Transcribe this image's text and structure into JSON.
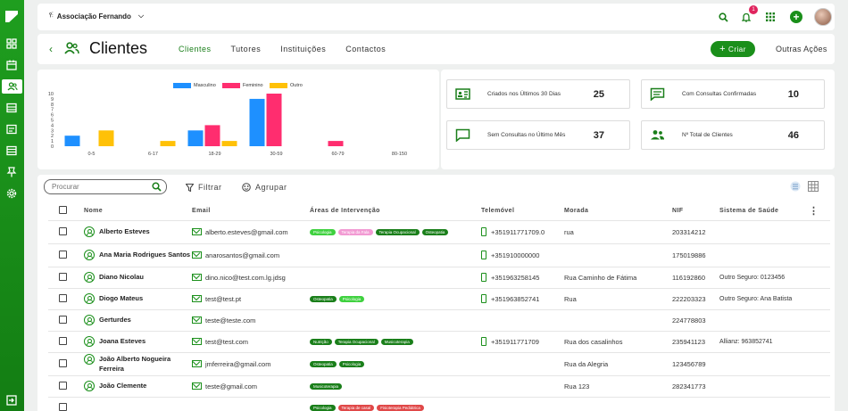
{
  "org": {
    "name": "Associação Fernando",
    "pin_icon": "pin-icon"
  },
  "notifications": {
    "count": "1"
  },
  "page": {
    "title": "Clientes",
    "tabs": [
      "Clientes",
      "Tutores",
      "Instituições",
      "Contactos"
    ],
    "active_tab": 0,
    "create_label": "Criar",
    "more_actions_label": "Outras Ações"
  },
  "colors": {
    "accent": "#1a8f1a",
    "masculino": "#1e90ff",
    "feminino": "#ff2d6f",
    "outro": "#ffc107"
  },
  "chart_data": {
    "type": "bar",
    "categories": [
      "0-5",
      "6-17",
      "18-29",
      "30-59",
      "60-79",
      "80-150"
    ],
    "series": [
      {
        "name": "Masculino",
        "values": [
          2,
          0,
          3,
          9,
          0,
          0
        ]
      },
      {
        "name": "Feminino",
        "values": [
          0,
          0,
          4,
          10,
          1,
          0
        ]
      },
      {
        "name": "Outro",
        "values": [
          3,
          1,
          1,
          0,
          0,
          0
        ]
      }
    ],
    "ylim": [
      0,
      10
    ],
    "yticks": [
      "0",
      "1",
      "2",
      "3",
      "4",
      "5",
      "6",
      "7",
      "8",
      "9",
      "10"
    ],
    "legend": "top",
    "grid": false
  },
  "stats": [
    {
      "label": "Criados nos Últimos 30 Dias",
      "value": "25",
      "icon": "id-card-icon"
    },
    {
      "label": "Com Consultas Confirmadas",
      "value": "10",
      "icon": "chat-icon"
    },
    {
      "label": "Sem Consultas no Último Mês",
      "value": "37",
      "icon": "chat-icon"
    },
    {
      "label": "Nº Total de Clientes",
      "value": "46",
      "icon": "users-icon"
    }
  ],
  "toolbar": {
    "search_placeholder": "Procurar",
    "filter_label": "Filtrar",
    "group_label": "Agrupar"
  },
  "table": {
    "columns": [
      "Nome",
      "Email",
      "Áreas de Intervenção",
      "Telemóvel",
      "Morada",
      "NIF",
      "Sistema de Saúde"
    ],
    "rows": [
      {
        "name": "Alberto Esteves",
        "email": "alberto.esteves@gmail.com",
        "areas": [
          [
            "Psicologia",
            "lime"
          ],
          [
            "Terapia da Fala",
            "pink"
          ],
          [
            "Terapia Ocupacional",
            "dark"
          ],
          [
            "Osteopatia",
            "dark"
          ]
        ],
        "phone": "+351911771709.0",
        "address": "rua",
        "nif": "203314212",
        "health": ""
      },
      {
        "name": "Ana Maria Rodrigues Santos",
        "email": "anarosantos@gmail.com",
        "areas": [],
        "phone": "+351910000000",
        "address": "",
        "nif": "175019886",
        "health": ""
      },
      {
        "name": "Diano Nicolau",
        "email": "dino.nico@test.com.lg.jdsg",
        "areas": [],
        "phone": "+351963258145",
        "address": "Rua Caminho de Fátima",
        "nif": "116192860",
        "health": "Outro Seguro: 0123456"
      },
      {
        "name": "Diogo Mateus",
        "email": "test@test.pt",
        "areas": [
          [
            "Osteopatia",
            "dark"
          ],
          [
            "Psicologia",
            "lime"
          ]
        ],
        "phone": "+351963852741",
        "address": "Rua",
        "nif": "222203323",
        "health": "Outro Seguro: Ana Batista"
      },
      {
        "name": "Gerturdes",
        "email": "teste@teste.com",
        "areas": [],
        "phone": "",
        "address": "",
        "nif": "224778803",
        "health": ""
      },
      {
        "name": "Joana Esteves",
        "email": "test@test.com",
        "areas": [
          [
            "Nutrição",
            "dark"
          ],
          [
            "Terapia Ocupacional",
            "dark"
          ],
          [
            "Musicoterapia",
            "dark"
          ]
        ],
        "phone": "+351911771709",
        "address": "Rua dos casalinhos",
        "nif": "235941123",
        "health": "Allianz: 963852741"
      },
      {
        "name": "João Alberto Nogueira Ferreira",
        "email": "jmferreira@gmail.com",
        "areas": [
          [
            "Osteopatia",
            "dark"
          ],
          [
            "Psicologia",
            "dark"
          ]
        ],
        "phone": "",
        "address": "Rua da Alegria",
        "nif": "123456789",
        "health": ""
      },
      {
        "name": "João Clemente",
        "email": "teste@gmail.com",
        "areas": [
          [
            "Musicoterapia",
            "dark"
          ]
        ],
        "phone": "",
        "address": "Rua 123",
        "nif": "282341773",
        "health": ""
      },
      {
        "name": "",
        "email": "",
        "areas": [
          [
            "Psicologia",
            "dark"
          ],
          [
            "Terapia de casal",
            "red"
          ],
          [
            "Fisioterapia Pediátrica",
            "red"
          ]
        ],
        "phone": "",
        "address": "",
        "nif": "",
        "health": ""
      }
    ]
  }
}
